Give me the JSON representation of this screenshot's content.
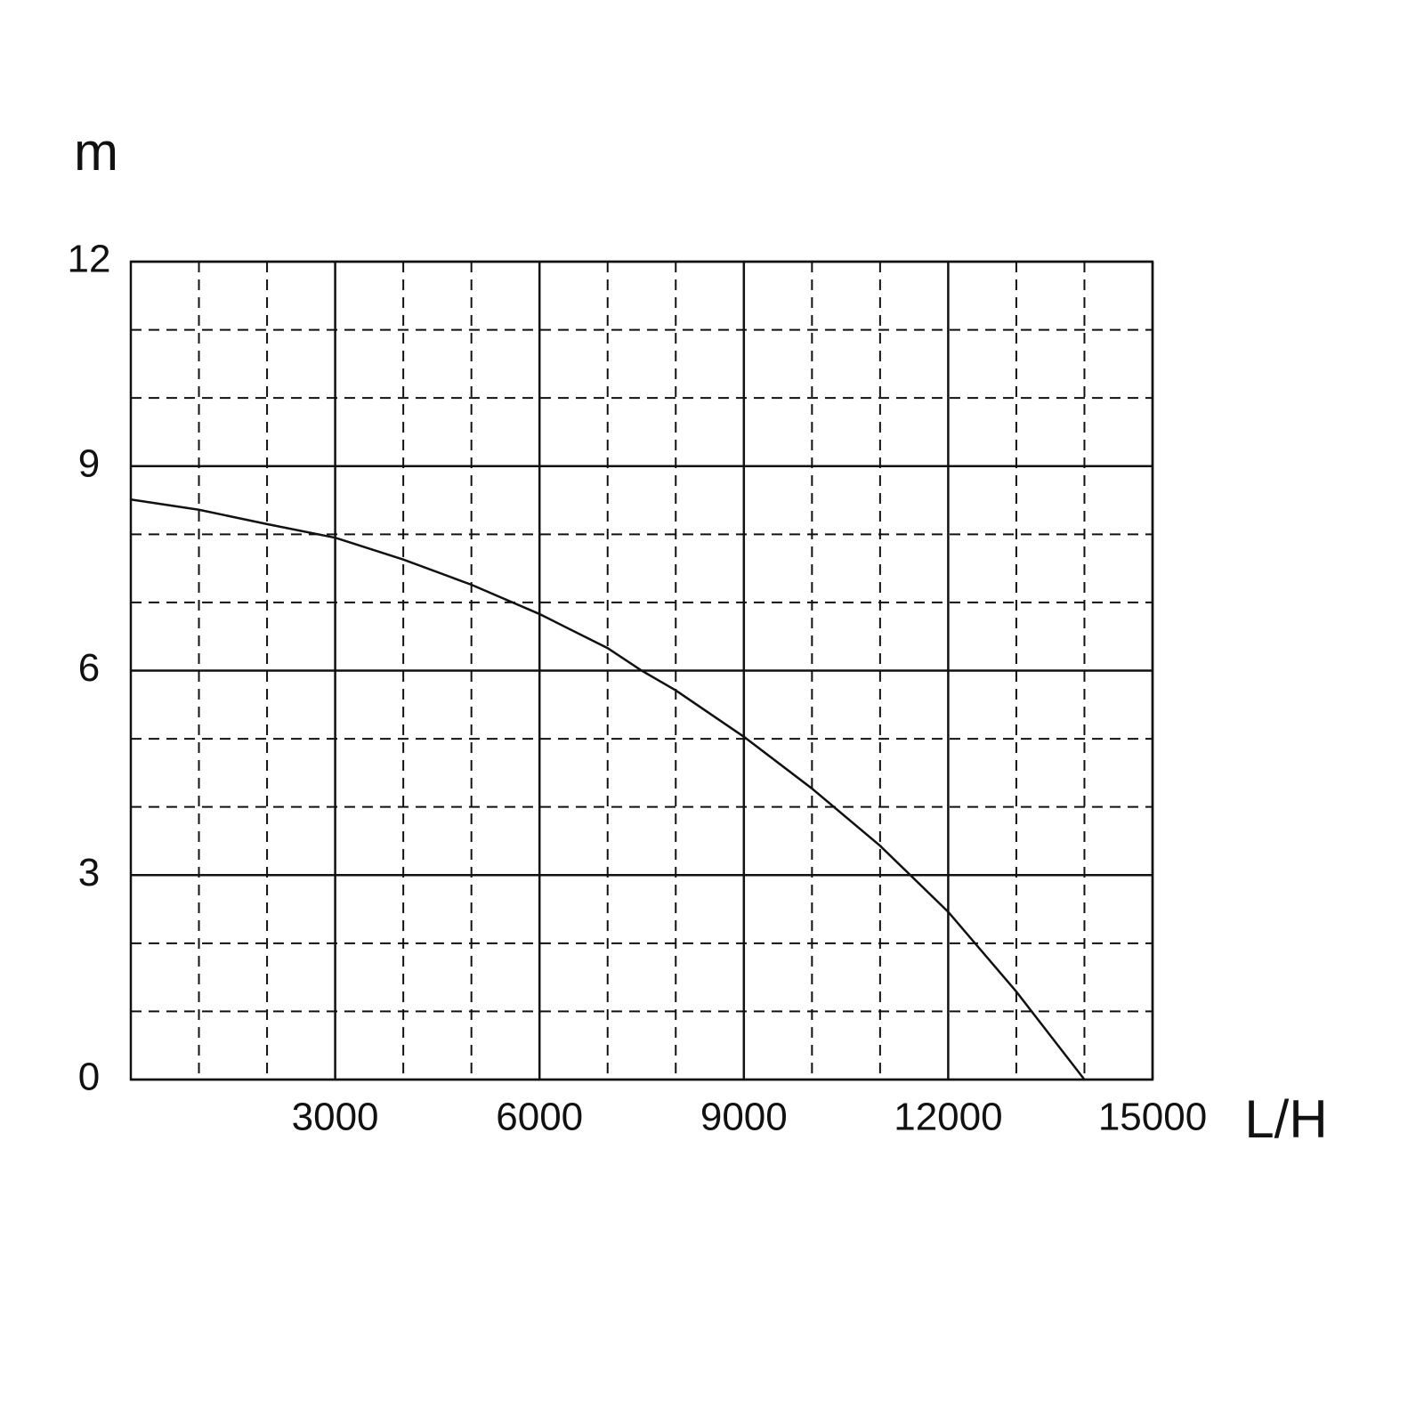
{
  "chart_data": {
    "type": "line",
    "x_label": "L/H",
    "y_label": "m",
    "x": [
      0,
      1000,
      2000,
      3000,
      4000,
      5000,
      6000,
      7000,
      7500,
      8000,
      9000,
      10000,
      11000,
      12000,
      13000,
      14000
    ],
    "series": [
      {
        "color": "#111111",
        "values": [
          8.51,
          8.36,
          8.15,
          7.95,
          7.63,
          7.26,
          6.83,
          6.33,
          6.0,
          5.71,
          5.03,
          4.27,
          3.43,
          2.46,
          1.29,
          0
        ]
      }
    ],
    "xlim": [
      0,
      15000
    ],
    "ylim": [
      0,
      12
    ],
    "xticks": [
      3000,
      6000,
      9000,
      12000,
      15000
    ],
    "yticks": [
      0,
      3,
      6,
      9,
      12
    ],
    "xminorticks": [
      1000,
      2000,
      4000,
      5000,
      7000,
      8000,
      10000,
      11000,
      13000,
      14000
    ],
    "yminorticks": [
      1,
      2,
      4,
      5,
      7,
      8,
      10,
      11
    ],
    "grid": true
  }
}
